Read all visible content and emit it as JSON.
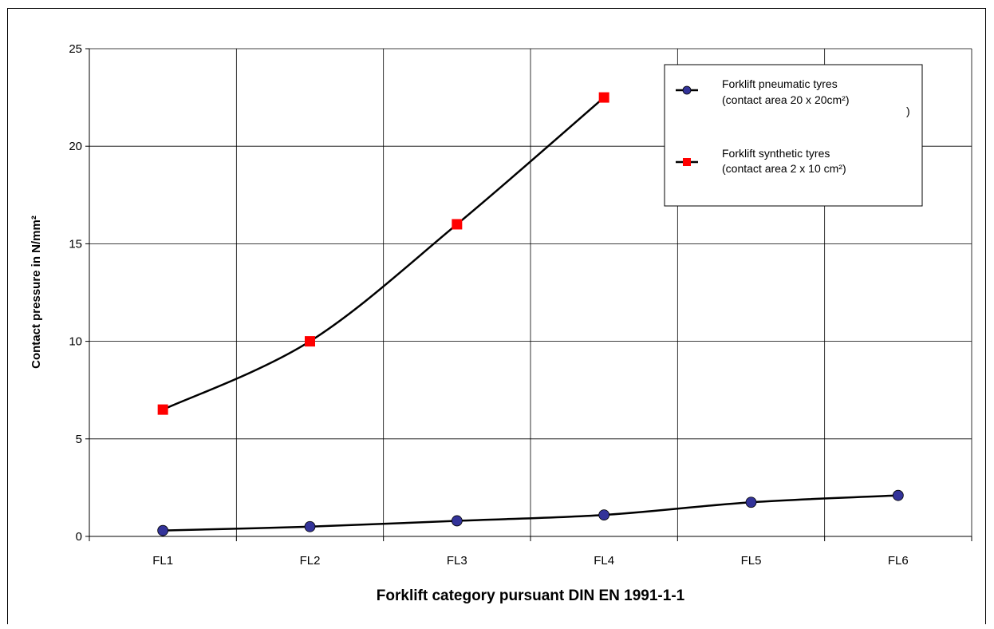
{
  "chart_data": {
    "type": "line",
    "categories": [
      "FL1",
      "FL2",
      "FL3",
      "FL4",
      "FL5",
      "FL6"
    ],
    "series": [
      {
        "legend_line1": "Forklift pneumatic tyres",
        "legend_line2": "(contact area 20 x 20cm²)",
        "marker": "circle",
        "color": "#333399",
        "values": [
          0.3,
          0.5,
          0.8,
          1.1,
          1.75,
          2.1
        ]
      },
      {
        "legend_line1": "Forklift synthetic tyres",
        "legend_line2": "(contact area 2 x 10 cm²)",
        "marker": "square",
        "color": "#ff0000",
        "values": [
          6.5,
          10,
          16,
          22.5,
          null,
          null
        ]
      }
    ],
    "xlabel": "Forklift category pursuant DIN EN 1991-1-1",
    "ylabel": "Contact pressure in N/mm²",
    "ylim": [
      0,
      25
    ],
    "yticks": [
      0,
      5,
      10,
      15,
      20,
      25
    ],
    "grid": true,
    "legend_position": "top-right",
    "stray_legend_mark": ")",
    "line_color": "#000000"
  }
}
